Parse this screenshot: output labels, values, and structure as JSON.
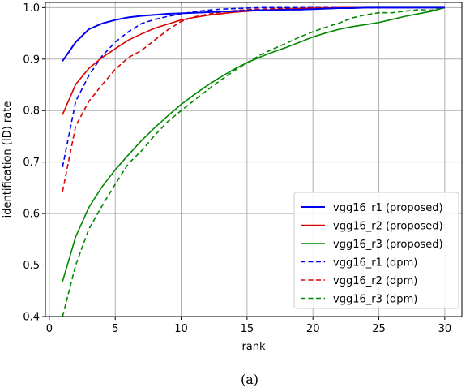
{
  "chart_data": {
    "type": "line",
    "title": "",
    "xlabel": "rank",
    "ylabel": "identification (ID) rate",
    "xlim": [
      -0.3,
      31.3
    ],
    "ylim": [
      0.4,
      1.01
    ],
    "xticks": [
      0,
      5,
      10,
      15,
      20,
      25,
      30
    ],
    "yticks": [
      0.4,
      0.5,
      0.6,
      0.7,
      0.8,
      0.9,
      1.0
    ],
    "xtick_labels": [
      "0",
      "5",
      "10",
      "15",
      "20",
      "25",
      "30"
    ],
    "ytick_labels": [
      "0.4",
      "0.5",
      "0.6",
      "0.7",
      "0.8",
      "0.9",
      "1.0"
    ],
    "grid": true,
    "legend_position": "lower-right",
    "caption": "(a)",
    "series": [
      {
        "name": "vgg16_r1 (proposed)",
        "color": "#0000ee",
        "style": "solid",
        "width": 2,
        "x": [
          1,
          2,
          3,
          4,
          5,
          6,
          7,
          8,
          9,
          10,
          11,
          12,
          13,
          14,
          15,
          16,
          17,
          18,
          19,
          20,
          21,
          22,
          23,
          24,
          25,
          26,
          27,
          28,
          29,
          30
        ],
        "y": [
          0.896,
          0.933,
          0.958,
          0.969,
          0.976,
          0.981,
          0.984,
          0.986,
          0.988,
          0.989,
          0.99,
          0.991,
          0.992,
          0.993,
          0.994,
          0.995,
          0.995,
          0.996,
          0.996,
          0.997,
          0.998,
          0.999,
          0.999,
          1.0,
          1.0,
          1.0,
          1.0,
          1.0,
          1.0,
          1.0
        ]
      },
      {
        "name": "vgg16_r2 (proposed)",
        "color": "#dd0000",
        "style": "solid",
        "width": 1.6,
        "x": [
          1,
          2,
          3,
          4,
          5,
          6,
          7,
          8,
          9,
          10,
          11,
          12,
          13,
          14,
          15,
          16,
          17,
          18,
          19,
          20,
          21,
          22,
          23,
          24,
          25,
          26,
          27,
          28,
          29,
          30
        ],
        "y": [
          0.792,
          0.851,
          0.882,
          0.903,
          0.92,
          0.937,
          0.949,
          0.96,
          0.968,
          0.976,
          0.981,
          0.985,
          0.988,
          0.991,
          0.993,
          0.995,
          0.996,
          0.997,
          0.998,
          0.999,
          0.999,
          1.0,
          1.0,
          1.0,
          1.0,
          1.0,
          1.0,
          1.0,
          1.0,
          1.0
        ]
      },
      {
        "name": "vgg16_r3 (proposed)",
        "color": "#008800",
        "style": "solid",
        "width": 1.6,
        "x": [
          1,
          2,
          3,
          4,
          5,
          6,
          7,
          8,
          9,
          10,
          11,
          12,
          13,
          14,
          15,
          16,
          17,
          18,
          19,
          20,
          21,
          22,
          23,
          24,
          25,
          26,
          27,
          28,
          29,
          30
        ],
        "y": [
          0.468,
          0.555,
          0.612,
          0.652,
          0.685,
          0.714,
          0.742,
          0.767,
          0.79,
          0.812,
          0.831,
          0.849,
          0.865,
          0.88,
          0.893,
          0.904,
          0.914,
          0.923,
          0.933,
          0.943,
          0.951,
          0.958,
          0.963,
          0.967,
          0.971,
          0.977,
          0.983,
          0.988,
          0.993,
          1.0
        ]
      },
      {
        "name": "vgg16_r1 (dpm)",
        "color": "#0000ee",
        "style": "dashed",
        "width": 1.6,
        "x": [
          1,
          2,
          3,
          4,
          5,
          6,
          7,
          8,
          9,
          10,
          11,
          12,
          13,
          14,
          15,
          16,
          17,
          18,
          19,
          20,
          21,
          22,
          23,
          24,
          25,
          26,
          27,
          28,
          29,
          30
        ],
        "y": [
          0.69,
          0.818,
          0.868,
          0.906,
          0.933,
          0.953,
          0.969,
          0.977,
          0.983,
          0.988,
          0.992,
          0.995,
          0.997,
          0.998,
          0.999,
          1.0,
          1.0,
          1.0,
          1.0,
          1.0,
          1.0,
          1.0,
          1.0,
          1.0,
          1.0,
          1.0,
          1.0,
          1.0,
          1.0,
          1.0
        ]
      },
      {
        "name": "vgg16_r2 (dpm)",
        "color": "#dd0000",
        "style": "dashed",
        "width": 1.6,
        "x": [
          1,
          2,
          3,
          4,
          5,
          6,
          7,
          8,
          9,
          10,
          11,
          12,
          13,
          14,
          15,
          16,
          17,
          18,
          19,
          20,
          21,
          22,
          23,
          24,
          25,
          26,
          27,
          28,
          29,
          30
        ],
        "y": [
          0.643,
          0.77,
          0.818,
          0.85,
          0.88,
          0.903,
          0.917,
          0.937,
          0.957,
          0.973,
          0.982,
          0.987,
          0.991,
          0.994,
          0.996,
          0.997,
          0.998,
          0.999,
          1.0,
          1.0,
          1.0,
          1.0,
          1.0,
          1.0,
          1.0,
          1.0,
          1.0,
          1.0,
          1.0,
          1.0
        ]
      },
      {
        "name": "vgg16_r3 (dpm)",
        "color": "#008800",
        "style": "dashed",
        "width": 1.6,
        "x": [
          1,
          2,
          3,
          4,
          5,
          6,
          7,
          8,
          9,
          10,
          11,
          12,
          13,
          14,
          15,
          16,
          17,
          18,
          19,
          20,
          21,
          22,
          23,
          24,
          25,
          26,
          27,
          28,
          29,
          30
        ],
        "y": [
          0.4,
          0.5,
          0.57,
          0.615,
          0.657,
          0.697,
          0.722,
          0.752,
          0.779,
          0.8,
          0.82,
          0.84,
          0.859,
          0.877,
          0.893,
          0.908,
          0.92,
          0.931,
          0.943,
          0.953,
          0.962,
          0.97,
          0.98,
          0.986,
          0.99,
          0.99,
          0.993,
          0.996,
          0.995,
          1.0
        ]
      }
    ]
  }
}
